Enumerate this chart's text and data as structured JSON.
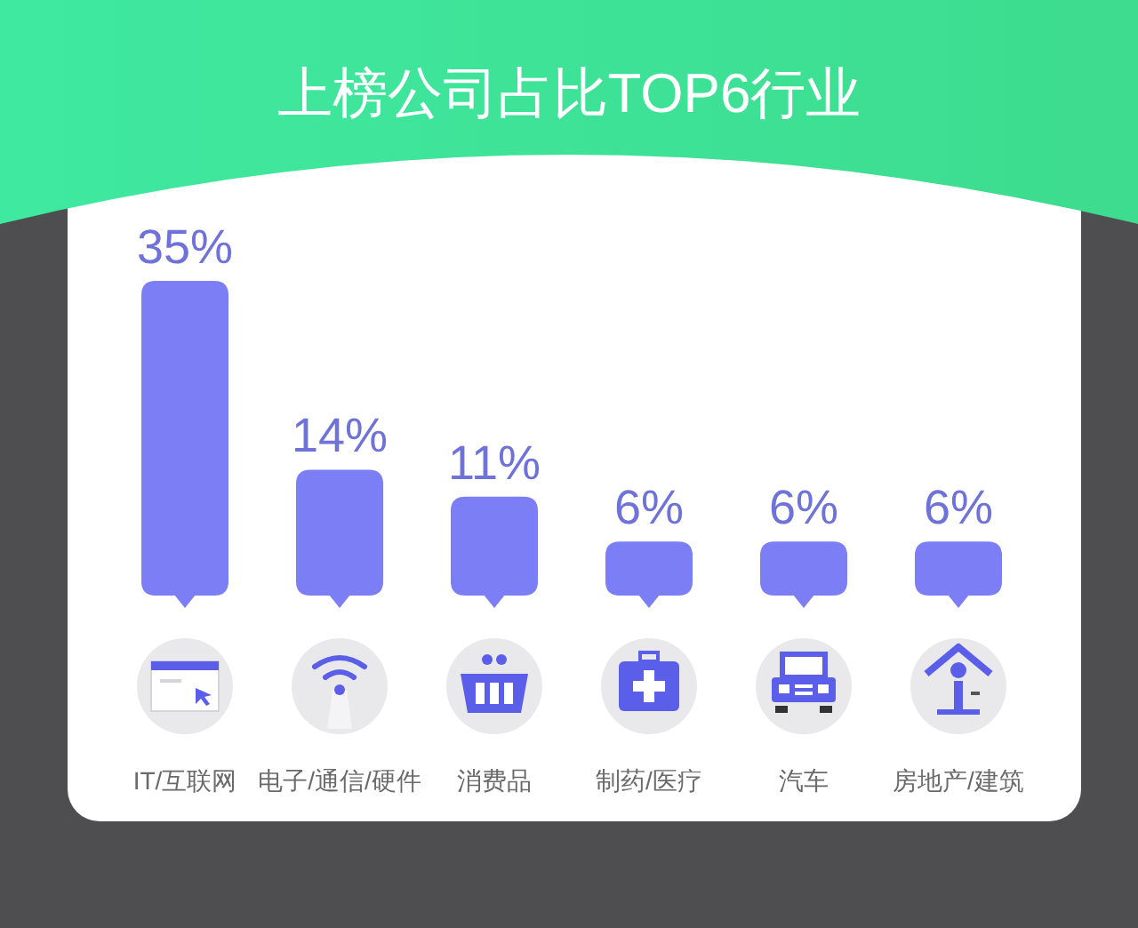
{
  "chart_data": {
    "type": "bar",
    "title": "上榜公司占比TOP6行业",
    "categories": [
      "IT/互联网",
      "电子/通信/硬件",
      "消费品",
      "制药/医疗",
      "汽车",
      "房地产/建筑"
    ],
    "values": [
      35,
      14,
      11,
      6,
      6,
      6
    ],
    "color": "#7b7ef5",
    "value_labels": [
      "35%",
      "14%",
      "11%",
      "6%",
      "6%",
      "6%"
    ]
  }
}
